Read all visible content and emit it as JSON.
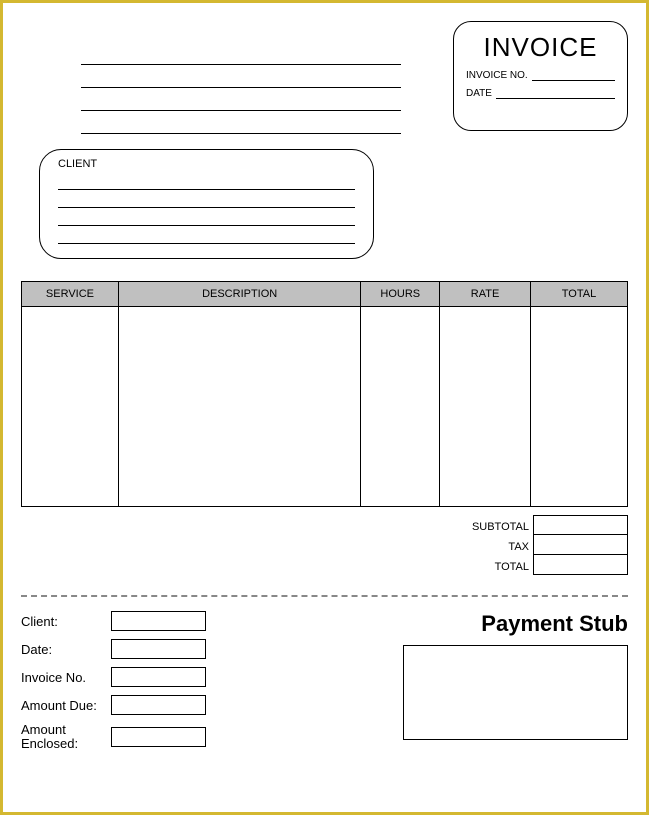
{
  "header": {
    "title": "INVOICE",
    "invoice_no_label": "INVOICE NO.",
    "date_label": "DATE"
  },
  "client": {
    "label": "CLIENT"
  },
  "table": {
    "columns": [
      "SERVICE",
      "DESCRIPTION",
      "HOURS",
      "RATE",
      "TOTAL"
    ],
    "column_widths": [
      "16%",
      "40%",
      "13%",
      "15%",
      "16%"
    ],
    "header_bg": "#c0c0c0",
    "border_color": "#000000"
  },
  "totals": {
    "subtotal_label": "SUBTOTAL",
    "tax_label": "TAX",
    "total_label": "TOTAL"
  },
  "stub": {
    "title": "Payment Stub",
    "client_label": "Client:",
    "date_label": "Date:",
    "invoice_no_label": "Invoice No.",
    "amount_due_label": "Amount Due:",
    "amount_enclosed_label": "Amount\nEnclosed:"
  },
  "theme": {
    "page_border": "#d4b831",
    "line_color": "#000000",
    "divider_color": "#888888"
  }
}
